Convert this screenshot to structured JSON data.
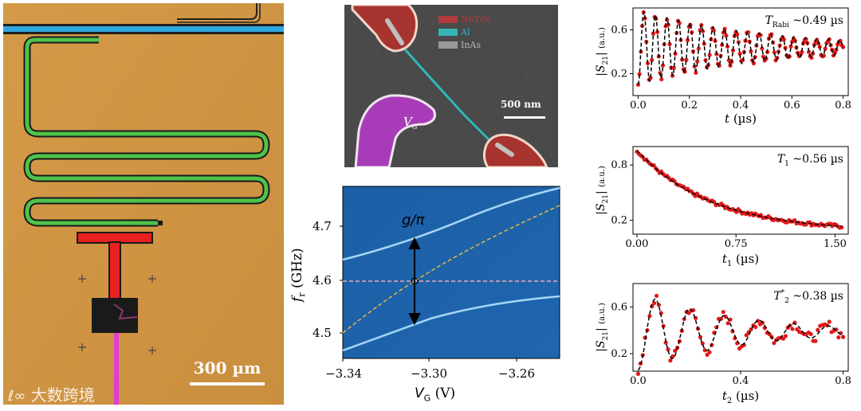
{
  "chip": {
    "scale_label": "300 µm",
    "watermark": "大数跨境"
  },
  "sem": {
    "legend": [
      "NbTiN",
      "Al",
      "InAs"
    ],
    "legend_colors": [
      "#b23b3b",
      "#33b5b5",
      "#9a9a9a"
    ],
    "gate_label": "V",
    "gate_sub": "G",
    "scale_label": "500 nm"
  },
  "spectro": {
    "coupling_label": "g/π",
    "ylabel_main": "f",
    "ylabel_sub": "r",
    "ylabel_unit": " (GHz)",
    "xlabel_main": "V",
    "xlabel_sub": "G",
    "xlabel_unit": " (V)",
    "yticks": [
      "4.7",
      "4.6",
      "4.5"
    ],
    "xticks": [
      "−3.34",
      "−3.30",
      "−3.26"
    ]
  },
  "chart_data": [
    {
      "type": "scatter",
      "xlabel": "t (µs)",
      "ylabel": "|S21| (a.u.)",
      "annotation": "T_Rabi ~0.49 µs",
      "xlim": [
        -0.02,
        0.82
      ],
      "ylim": [
        0.0,
        0.8
      ],
      "xticks": [
        "0.0",
        "0.2",
        "0.4",
        "0.6",
        "0.8"
      ],
      "yticks": [
        "0.6",
        "0.2"
      ],
      "ytick_values": [
        0.6,
        0.2
      ],
      "xtick_values": [
        0.0,
        0.2,
        0.4,
        0.6,
        0.8
      ],
      "model": {
        "kind": "damped_cos",
        "offset": 0.44,
        "amp": 0.34,
        "period": 0.045,
        "decay": 0.49,
        "t_start": 0.0,
        "t_end": 0.8
      },
      "annotation_parts": {
        "sym": "T",
        "sub": "Rabi",
        "val": " ~0.49 µs"
      }
    },
    {
      "type": "scatter",
      "xlabel": "t1 (µs)",
      "ylabel": "|S21| (a.u.)",
      "annotation": "T1 ~0.56 µs",
      "xlim": [
        -0.03,
        1.6
      ],
      "ylim": [
        0.05,
        1.0
      ],
      "xticks": [
        "0.00",
        "0.75",
        "1.50"
      ],
      "yticks": [
        "0.8",
        "0.2"
      ],
      "ytick_values": [
        0.8,
        0.2
      ],
      "xtick_values": [
        0.0,
        0.75,
        1.5
      ],
      "model": {
        "kind": "exp",
        "offset": 0.08,
        "amp": 0.88,
        "decay": 0.56,
        "t_start": 0.0,
        "t_end": 1.55
      },
      "annotation_parts": {
        "sym": "T",
        "sub": "1",
        "val": " ~0.56 µs"
      }
    },
    {
      "type": "scatter",
      "xlabel": "t2 (µs)",
      "ylabel": "|S21| (a.u.)",
      "annotation": "T2* ~0.38 µs",
      "xlim": [
        -0.02,
        0.82
      ],
      "ylim": [
        0.05,
        0.8
      ],
      "xticks": [
        "0.0",
        "0.4",
        "0.8"
      ],
      "yticks": [
        "0.6",
        "0.2"
      ],
      "ytick_values": [
        0.6,
        0.2
      ],
      "xtick_values": [
        0.0,
        0.4,
        0.8
      ],
      "model": {
        "kind": "damped_cos",
        "offset": 0.39,
        "amp": 0.33,
        "period": 0.135,
        "decay": 0.38,
        "t_start": 0.0,
        "t_end": 0.8
      },
      "annotation_parts": {
        "sym": "T",
        "sub": "2",
        "sup": "*",
        "val": " ~0.38 µs"
      }
    }
  ]
}
